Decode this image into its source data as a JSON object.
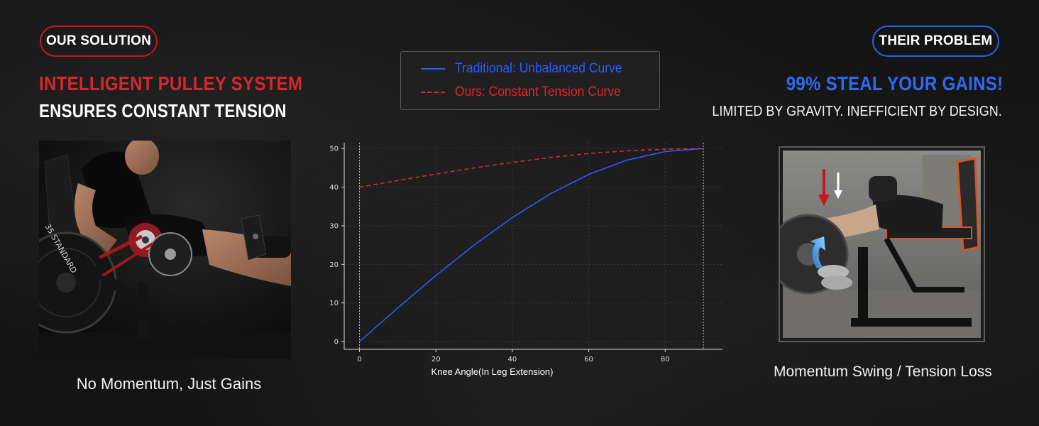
{
  "left_panel": {
    "badge": "OUR SOLUTION",
    "headline_1": "INTELLIGENT PULLEY SYSTEM",
    "headline_2": "ENSURES CONSTANT TENSION",
    "photo": "leg-extension-machine-pulley-closeup",
    "caption": "No Momentum, Just Gains"
  },
  "right_panel": {
    "badge": "THEIR PROBLEM",
    "headline_1": "99% STEAL YOUR GAINS!",
    "headline_2": "LIMITED BY GRAVITY. INEFFICIENT BY DESIGN.",
    "photo": "plate-loaded-leg-extension-momentum-swing",
    "caption": "Momentum Swing / Tension Loss"
  },
  "colors": {
    "accent_red": "#d8262e",
    "accent_blue": "#2f6bf2",
    "background": "#141414"
  },
  "chart_data": {
    "type": "line",
    "title": "",
    "xlabel": "Knee Angle(In Leg Extension)",
    "ylabel": "",
    "xlim": [
      -4,
      95
    ],
    "ylim": [
      -2,
      51.5
    ],
    "xticks": [
      0,
      20,
      40,
      60,
      80
    ],
    "yticks": [
      0,
      10,
      20,
      30,
      40,
      50
    ],
    "grid": true,
    "legend_position": "top-center-outside",
    "series": [
      {
        "name": "Traditional: Unbalanced Curve",
        "color": "#2a5cff",
        "style": "solid",
        "x": [
          0,
          10,
          20,
          30,
          40,
          50,
          60,
          70,
          80,
          90
        ],
        "y": [
          0,
          8.7,
          17.1,
          25.0,
          32.1,
          38.3,
          43.3,
          47.0,
          49.2,
          50.0
        ]
      },
      {
        "name": "Ours: Constant Tension Curve",
        "color": "#e0262e",
        "style": "dashed",
        "x": [
          0,
          10,
          20,
          30,
          40,
          50,
          60,
          70,
          80,
          90
        ],
        "y": [
          40,
          41.7,
          43.4,
          45.0,
          46.4,
          47.7,
          48.7,
          49.4,
          49.8,
          50.0
        ]
      }
    ]
  }
}
